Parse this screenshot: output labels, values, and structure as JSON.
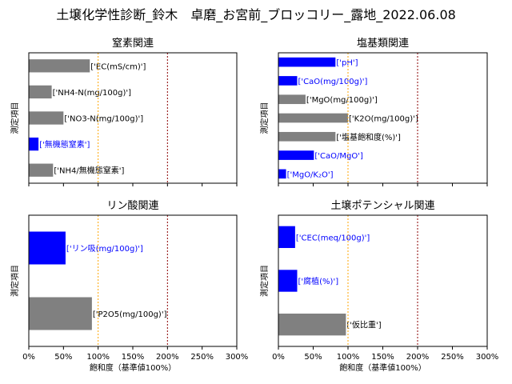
{
  "figure": {
    "title": "土壌化学性診断_鈴木　卓磨_お宮前_ブロッコリー_露地_2022.06.08"
  },
  "chart_data": [
    {
      "type": "bar",
      "orientation": "horizontal",
      "title": "窒素関連",
      "ylabel": "測定項目",
      "xlabel": "",
      "xlim": [
        0,
        300
      ],
      "x_ticks": [],
      "reference_lines": [
        100,
        200
      ],
      "categories": [
        "['EC(mS/cm)']",
        "['NH4-N(mg/100g)']",
        "['NO3-N(mg/100g)']",
        "['無機態窒素']",
        "['NH4/無機態窒素']"
      ],
      "values": [
        88,
        33,
        50,
        14,
        35
      ],
      "highlight": [
        false,
        false,
        false,
        true,
        false
      ]
    },
    {
      "type": "bar",
      "orientation": "horizontal",
      "title": "塩基類関連",
      "ylabel": "測定項目",
      "xlabel": "",
      "xlim": [
        0,
        300
      ],
      "x_ticks": [],
      "reference_lines": [
        100,
        200
      ],
      "categories": [
        "['pH']",
        "['CaO(mg/100g)']",
        "['MgO(mg/100g)']",
        "['K2O(mg/100g)']",
        "['塩基飽和度(%)']",
        "['CaO/MgO']",
        "['MgO/K₂O']"
      ],
      "values": [
        82,
        27,
        39,
        100,
        82,
        51,
        11
      ],
      "highlight": [
        true,
        true,
        false,
        false,
        false,
        true,
        true
      ]
    },
    {
      "type": "bar",
      "orientation": "horizontal",
      "title": "リン酸関連",
      "ylabel": "測定項目",
      "xlabel": "飽和度（基準値100%）",
      "xlim": [
        0,
        300
      ],
      "x_ticks": [
        "0%",
        "50%",
        "100%",
        "150%",
        "200%",
        "250%",
        "300%"
      ],
      "reference_lines": [
        100,
        200
      ],
      "categories": [
        "['リン吸(mg/100g)']",
        "['P2O5(mg/100g)']"
      ],
      "values": [
        53,
        91
      ],
      "highlight": [
        true,
        false
      ]
    },
    {
      "type": "bar",
      "orientation": "horizontal",
      "title": "土壌ポテンシャル関連",
      "ylabel": "測定項目",
      "xlabel": "飽和度（基準値100%）",
      "xlim": [
        0,
        300
      ],
      "x_ticks": [
        "0%",
        "50%",
        "100%",
        "150%",
        "200%",
        "250%",
        "300%"
      ],
      "reference_lines": [
        100,
        200
      ],
      "categories": [
        "['CEC(meq/100g)']",
        "['腐植(%)']",
        "['仮比重']"
      ],
      "values": [
        24,
        27,
        97
      ],
      "highlight": [
        true,
        true,
        false
      ]
    }
  ],
  "colors": {
    "normal_bar": "#808080",
    "highlight_bar": "#0000ff",
    "normal_label": "#000000",
    "highlight_label": "#0000ff",
    "line_100": "#ffa500",
    "line_200": "#8b0000"
  }
}
